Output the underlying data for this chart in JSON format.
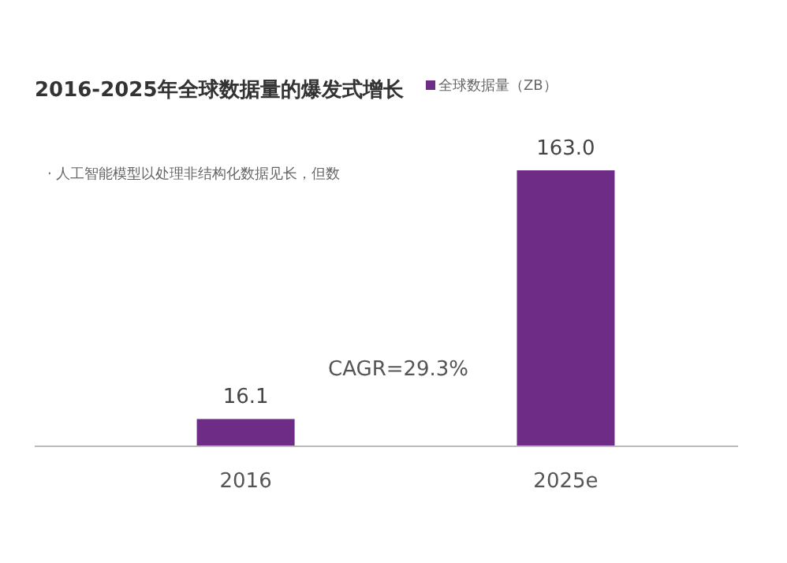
{
  "chart_data": {
    "type": "bar",
    "title": "2016-2025年全球数据量的爆发式增长",
    "categories": [
      "2016",
      "2025e"
    ],
    "series": [
      {
        "name": "全球数据量（ZB）",
        "color": "#6f2c86",
        "values": [
          16.1,
          163.0
        ],
        "value_labels": [
          "16.1",
          "163.0"
        ]
      }
    ],
    "legend": "top",
    "annotations": [
      "· 人工智能模型以处理非结构化数据见长，但数",
      "CAGR=29.3%"
    ]
  }
}
